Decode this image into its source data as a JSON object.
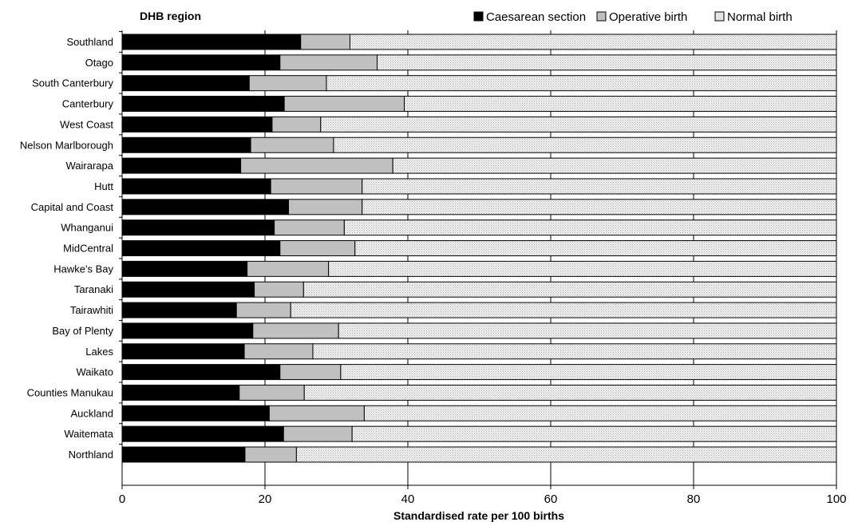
{
  "chart_data": {
    "type": "bar",
    "orientation": "horizontal",
    "stacked": true,
    "ylabel": "DHB region",
    "xlabel": "Standardised rate per 100 births",
    "xlim": [
      0,
      100
    ],
    "x_ticks": [
      0,
      20,
      40,
      60,
      80,
      100
    ],
    "grid": true,
    "legend_position": "top-right",
    "categories": [
      "Southland",
      "Otago",
      "South Canterbury",
      "Canterbury",
      "West Coast",
      "Nelson Marlborough",
      "Wairarapa",
      "Hutt",
      "Capital and Coast",
      "Whanganui",
      "MidCentral",
      "Hawke's Bay",
      "Taranaki",
      "Tairawhiti",
      "Bay of Plenty",
      "Lakes",
      "Waikato",
      "Counties Manukau",
      "Auckland",
      "Waitemata",
      "Northland"
    ],
    "series": [
      {
        "name": "Caesarean section",
        "color": "#000000",
        "values": [
          25.0,
          22.1,
          17.8,
          22.7,
          21.0,
          18.0,
          16.6,
          20.8,
          23.3,
          21.3,
          22.1,
          17.5,
          18.5,
          16.0,
          18.3,
          17.1,
          22.1,
          16.4,
          20.6,
          22.6,
          17.2
        ]
      },
      {
        "name": "Operative birth",
        "color": "#c0c0c0",
        "values": [
          6.9,
          13.6,
          10.8,
          16.8,
          6.8,
          11.6,
          21.3,
          12.8,
          10.3,
          9.8,
          10.5,
          11.4,
          6.9,
          7.6,
          12.0,
          9.6,
          8.5,
          9.1,
          13.3,
          9.6,
          7.2
        ]
      },
      {
        "name": "Normal birth",
        "color": "#e8e8e8",
        "values": [
          68.1,
          64.3,
          71.4,
          60.5,
          72.2,
          70.4,
          62.1,
          66.4,
          66.4,
          68.9,
          67.4,
          71.1,
          74.6,
          76.4,
          69.7,
          73.3,
          69.4,
          74.5,
          66.1,
          67.8,
          75.6
        ]
      }
    ]
  }
}
